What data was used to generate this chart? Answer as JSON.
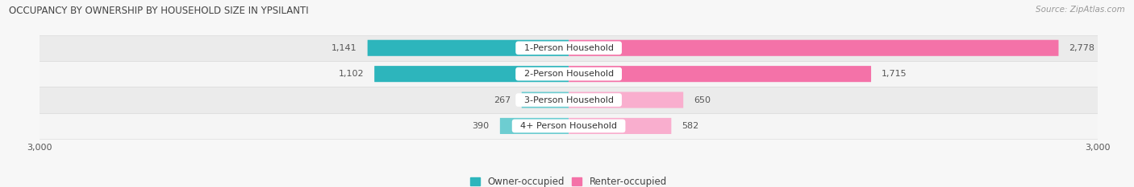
{
  "title": "OCCUPANCY BY OWNERSHIP BY HOUSEHOLD SIZE IN YPSILANTI",
  "source": "Source: ZipAtlas.com",
  "categories": [
    "1-Person Household",
    "2-Person Household",
    "3-Person Household",
    "4+ Person Household"
  ],
  "owner_values": [
    1141,
    1102,
    267,
    390
  ],
  "renter_values": [
    2778,
    1715,
    650,
    582
  ],
  "owner_colors": [
    "#2db5bc",
    "#2db5bc",
    "#6dcdd1",
    "#6dcdd1"
  ],
  "renter_colors": [
    "#f472a8",
    "#f472a8",
    "#f9aece",
    "#f9aece"
  ],
  "axis_max": 3000,
  "row_bg_colors": [
    "#f0f0f0",
    "#fafafa",
    "#f0f0f0",
    "#fafafa"
  ],
  "background_color": "#f7f7f7",
  "label_color": "#555555",
  "title_color": "#444444",
  "legend_owner_color": "#2db5bc",
  "legend_renter_color": "#f472a8"
}
